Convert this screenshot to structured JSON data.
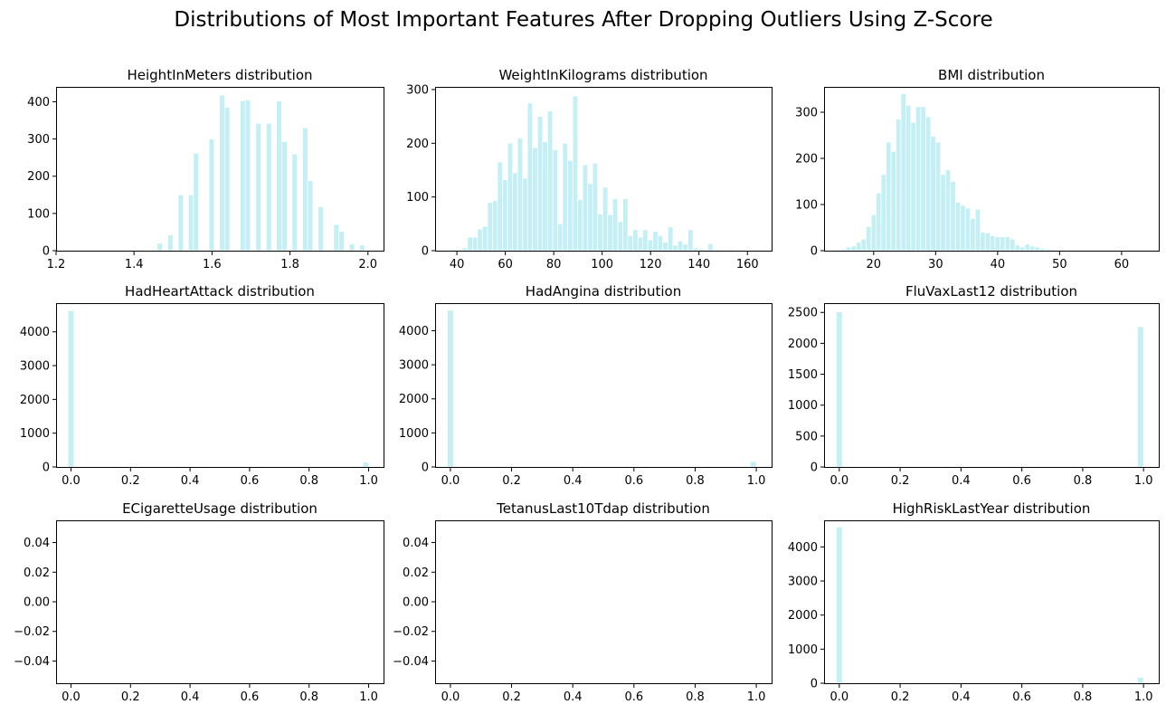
{
  "figure": {
    "title": "Distributions of Most Important Features After Dropping Outliers Using Z-Score",
    "bar_color": "#c3eff5"
  },
  "chart_data": [
    {
      "type": "bar",
      "title": "HeightInMeters distribution",
      "xlim": [
        1.2,
        2.04
      ],
      "ylim": [
        0,
        440
      ],
      "xticks": [
        1.2,
        1.4,
        1.6,
        1.8,
        2.0
      ],
      "xtick_labels": [
        "1.2",
        "1.4",
        "1.6",
        "1.8",
        "2.0"
      ],
      "yticks": [
        0,
        100,
        200,
        300,
        400
      ],
      "ytick_labels": [
        "0",
        "100",
        "200",
        "300",
        "400"
      ],
      "bin_width": 0.0133,
      "bins": [
        {
          "x": 1.466,
          "value": 20
        },
        {
          "x": 1.493,
          "value": 42
        },
        {
          "x": 1.52,
          "value": 150
        },
        {
          "x": 1.546,
          "value": 150
        },
        {
          "x": 1.559,
          "value": 262
        },
        {
          "x": 1.599,
          "value": 300
        },
        {
          "x": 1.626,
          "value": 418
        },
        {
          "x": 1.639,
          "value": 385
        },
        {
          "x": 1.679,
          "value": 403
        },
        {
          "x": 1.692,
          "value": 405
        },
        {
          "x": 1.719,
          "value": 342
        },
        {
          "x": 1.746,
          "value": 342
        },
        {
          "x": 1.772,
          "value": 402
        },
        {
          "x": 1.786,
          "value": 293
        },
        {
          "x": 1.812,
          "value": 260
        },
        {
          "x": 1.839,
          "value": 330
        },
        {
          "x": 1.852,
          "value": 188
        },
        {
          "x": 1.879,
          "value": 118
        },
        {
          "x": 1.919,
          "value": 70
        },
        {
          "x": 1.932,
          "value": 52
        },
        {
          "x": 1.959,
          "value": 18
        },
        {
          "x": 1.985,
          "value": 15
        }
      ]
    },
    {
      "type": "bar",
      "title": "WeightInKilograms distribution",
      "xlim": [
        31,
        170
      ],
      "ylim": [
        0,
        305
      ],
      "xticks": [
        40,
        60,
        80,
        100,
        120,
        140,
        160
      ],
      "xtick_labels": [
        "40",
        "60",
        "80",
        "100",
        "120",
        "140",
        "160"
      ],
      "yticks": [
        0,
        100,
        200,
        300
      ],
      "ytick_labels": [
        "0",
        "100",
        "200",
        "300"
      ],
      "bin_width": 2.07,
      "bins": [
        {
          "x": 39.2,
          "value": 2
        },
        {
          "x": 41.3,
          "value": 2
        },
        {
          "x": 43.3,
          "value": 5
        },
        {
          "x": 45.4,
          "value": 25
        },
        {
          "x": 47.5,
          "value": 25
        },
        {
          "x": 49.5,
          "value": 40
        },
        {
          "x": 51.6,
          "value": 45
        },
        {
          "x": 53.7,
          "value": 90
        },
        {
          "x": 55.8,
          "value": 93
        },
        {
          "x": 57.8,
          "value": 165
        },
        {
          "x": 59.9,
          "value": 132
        },
        {
          "x": 62.0,
          "value": 200
        },
        {
          "x": 64.0,
          "value": 145
        },
        {
          "x": 66.1,
          "value": 210
        },
        {
          "x": 68.2,
          "value": 135
        },
        {
          "x": 70.2,
          "value": 275
        },
        {
          "x": 72.3,
          "value": 192
        },
        {
          "x": 74.4,
          "value": 250
        },
        {
          "x": 76.4,
          "value": 203
        },
        {
          "x": 78.5,
          "value": 260
        },
        {
          "x": 80.6,
          "value": 188
        },
        {
          "x": 82.7,
          "value": 50
        },
        {
          "x": 84.7,
          "value": 200
        },
        {
          "x": 86.8,
          "value": 168
        },
        {
          "x": 88.9,
          "value": 288
        },
        {
          "x": 90.9,
          "value": 95
        },
        {
          "x": 93.0,
          "value": 160
        },
        {
          "x": 95.1,
          "value": 125
        },
        {
          "x": 97.1,
          "value": 163
        },
        {
          "x": 99.2,
          "value": 68
        },
        {
          "x": 101.3,
          "value": 118
        },
        {
          "x": 103.3,
          "value": 67
        },
        {
          "x": 105.4,
          "value": 97
        },
        {
          "x": 107.5,
          "value": 54
        },
        {
          "x": 109.6,
          "value": 97
        },
        {
          "x": 111.6,
          "value": 28
        },
        {
          "x": 113.7,
          "value": 39
        },
        {
          "x": 115.8,
          "value": 25
        },
        {
          "x": 117.8,
          "value": 39
        },
        {
          "x": 119.9,
          "value": 20
        },
        {
          "x": 122.0,
          "value": 36
        },
        {
          "x": 124.0,
          "value": 28
        },
        {
          "x": 126.1,
          "value": 16
        },
        {
          "x": 128.2,
          "value": 44
        },
        {
          "x": 130.2,
          "value": 10
        },
        {
          "x": 132.3,
          "value": 18
        },
        {
          "x": 134.4,
          "value": 12
        },
        {
          "x": 136.5,
          "value": 39
        },
        {
          "x": 138.5,
          "value": 5
        },
        {
          "x": 140.6,
          "value": 3
        },
        {
          "x": 142.7,
          "value": 2
        },
        {
          "x": 144.7,
          "value": 13
        },
        {
          "x": 146.8,
          "value": 2
        },
        {
          "x": 148.9,
          "value": 2
        },
        {
          "x": 153.0,
          "value": 2
        },
        {
          "x": 159.2,
          "value": 1
        },
        {
          "x": 163.4,
          "value": 1
        }
      ]
    },
    {
      "type": "bar",
      "title": "BMI distribution",
      "xlim": [
        12,
        66
      ],
      "ylim": [
        0,
        355
      ],
      "xticks": [
        20,
        30,
        40,
        50,
        60
      ],
      "xtick_labels": [
        "20",
        "30",
        "40",
        "50",
        "60"
      ],
      "yticks": [
        0,
        100,
        200,
        300
      ],
      "ytick_labels": [
        "0",
        "100",
        "200",
        "300"
      ],
      "bin_width": 0.8,
      "bins": [
        {
          "x": 14.4,
          "value": 2
        },
        {
          "x": 15.2,
          "value": 3
        },
        {
          "x": 16.0,
          "value": 8
        },
        {
          "x": 16.8,
          "value": 10
        },
        {
          "x": 17.6,
          "value": 18
        },
        {
          "x": 18.4,
          "value": 25
        },
        {
          "x": 19.2,
          "value": 52
        },
        {
          "x": 20.0,
          "value": 78
        },
        {
          "x": 20.8,
          "value": 125
        },
        {
          "x": 21.6,
          "value": 165
        },
        {
          "x": 22.4,
          "value": 235
        },
        {
          "x": 23.2,
          "value": 215
        },
        {
          "x": 24.0,
          "value": 285
        },
        {
          "x": 24.8,
          "value": 340
        },
        {
          "x": 25.6,
          "value": 315
        },
        {
          "x": 26.4,
          "value": 278
        },
        {
          "x": 27.2,
          "value": 312
        },
        {
          "x": 28.0,
          "value": 312
        },
        {
          "x": 28.8,
          "value": 290
        },
        {
          "x": 29.6,
          "value": 248
        },
        {
          "x": 30.4,
          "value": 235
        },
        {
          "x": 31.2,
          "value": 165
        },
        {
          "x": 32.0,
          "value": 175
        },
        {
          "x": 32.8,
          "value": 150
        },
        {
          "x": 33.6,
          "value": 105
        },
        {
          "x": 34.4,
          "value": 98
        },
        {
          "x": 35.2,
          "value": 92
        },
        {
          "x": 36.0,
          "value": 70
        },
        {
          "x": 36.8,
          "value": 90
        },
        {
          "x": 37.6,
          "value": 40
        },
        {
          "x": 38.4,
          "value": 38
        },
        {
          "x": 39.2,
          "value": 32
        },
        {
          "x": 40.0,
          "value": 30
        },
        {
          "x": 40.8,
          "value": 30
        },
        {
          "x": 41.6,
          "value": 30
        },
        {
          "x": 42.4,
          "value": 25
        },
        {
          "x": 43.2,
          "value": 12
        },
        {
          "x": 44.0,
          "value": 8
        },
        {
          "x": 44.8,
          "value": 14
        },
        {
          "x": 45.6,
          "value": 10
        },
        {
          "x": 46.4,
          "value": 8
        },
        {
          "x": 47.2,
          "value": 5
        },
        {
          "x": 48.0,
          "value": 3
        },
        {
          "x": 48.8,
          "value": 3
        },
        {
          "x": 50.4,
          "value": 2
        },
        {
          "x": 52.0,
          "value": 1
        }
      ]
    },
    {
      "type": "bar",
      "title": "HadHeartAttack distribution",
      "xlim": [
        -0.05,
        1.05
      ],
      "ylim": [
        0,
        4850
      ],
      "xticks": [
        0,
        0.2,
        0.4,
        0.6,
        0.8,
        1.0
      ],
      "xtick_labels": [
        "0.0",
        "0.2",
        "0.4",
        "0.6",
        "0.8",
        "1.0"
      ],
      "yticks": [
        0,
        1000,
        2000,
        3000,
        4000
      ],
      "ytick_labels": [
        "0",
        "1000",
        "2000",
        "3000",
        "4000"
      ],
      "bin_width": 0.02,
      "bins": [
        {
          "x": 0,
          "value": 4630
        },
        {
          "x": 0.99,
          "value": 140
        }
      ]
    },
    {
      "type": "bar",
      "title": "HadAngina distribution",
      "xlim": [
        -0.05,
        1.05
      ],
      "ylim": [
        0,
        4810
      ],
      "xticks": [
        0,
        0.2,
        0.4,
        0.6,
        0.8,
        1.0
      ],
      "xtick_labels": [
        "0.0",
        "0.2",
        "0.4",
        "0.6",
        "0.8",
        "1.0"
      ],
      "yticks": [
        0,
        1000,
        2000,
        3000,
        4000
      ],
      "ytick_labels": [
        "0",
        "1000",
        "2000",
        "3000",
        "4000"
      ],
      "bin_width": 0.02,
      "bins": [
        {
          "x": 0,
          "value": 4600
        },
        {
          "x": 0.99,
          "value": 160
        }
      ]
    },
    {
      "type": "bar",
      "title": "FluVaxLast12 distribution",
      "xlim": [
        -0.05,
        1.05
      ],
      "ylim": [
        0,
        2650
      ],
      "xticks": [
        0,
        0.2,
        0.4,
        0.6,
        0.8,
        1.0
      ],
      "xtick_labels": [
        "0.0",
        "0.2",
        "0.4",
        "0.6",
        "0.8",
        "1.0"
      ],
      "yticks": [
        0,
        500,
        1000,
        1500,
        2000,
        2500
      ],
      "ytick_labels": [
        "0",
        "500",
        "1000",
        "1500",
        "2000",
        "2500"
      ],
      "bin_width": 0.02,
      "bins": [
        {
          "x": 0,
          "value": 2510
        },
        {
          "x": 0.99,
          "value": 2270
        }
      ]
    },
    {
      "type": "bar",
      "title": "ECigaretteUsage distribution",
      "xlim": [
        -0.05,
        1.05
      ],
      "ylim": [
        -0.055,
        0.055
      ],
      "xticks": [
        0,
        0.2,
        0.4,
        0.6,
        0.8,
        1.0
      ],
      "xtick_labels": [
        "0.0",
        "0.2",
        "0.4",
        "0.6",
        "0.8",
        "1.0"
      ],
      "yticks": [
        -0.04,
        -0.02,
        0,
        0.02,
        0.04
      ],
      "ytick_labels": [
        "−0.04",
        "−0.02",
        "0.00",
        "0.02",
        "0.04"
      ],
      "bin_width": 0.02,
      "bins": []
    },
    {
      "type": "bar",
      "title": "TetanusLast10Tdap distribution",
      "xlim": [
        -0.05,
        1.05
      ],
      "ylim": [
        -0.055,
        0.055
      ],
      "xticks": [
        0,
        0.2,
        0.4,
        0.6,
        0.8,
        1.0
      ],
      "xtick_labels": [
        "0.0",
        "0.2",
        "0.4",
        "0.6",
        "0.8",
        "1.0"
      ],
      "yticks": [
        -0.04,
        -0.02,
        0,
        0.02,
        0.04
      ],
      "ytick_labels": [
        "−0.04",
        "−0.02",
        "0.00",
        "0.02",
        "0.04"
      ],
      "bin_width": 0.02,
      "bins": []
    },
    {
      "type": "bar",
      "title": "HighRiskLastYear distribution",
      "xlim": [
        -0.05,
        1.05
      ],
      "ylim": [
        0,
        4780
      ],
      "xticks": [
        0,
        0.2,
        0.4,
        0.6,
        0.8,
        1.0
      ],
      "xtick_labels": [
        "0.0",
        "0.2",
        "0.4",
        "0.6",
        "0.8",
        "1.0"
      ],
      "yticks": [
        0,
        1000,
        2000,
        3000,
        4000
      ],
      "ytick_labels": [
        "0",
        "1000",
        "2000",
        "3000",
        "4000"
      ],
      "bin_width": 0.02,
      "bins": [
        {
          "x": 0,
          "value": 4580
        },
        {
          "x": 0.99,
          "value": 170
        }
      ]
    }
  ]
}
